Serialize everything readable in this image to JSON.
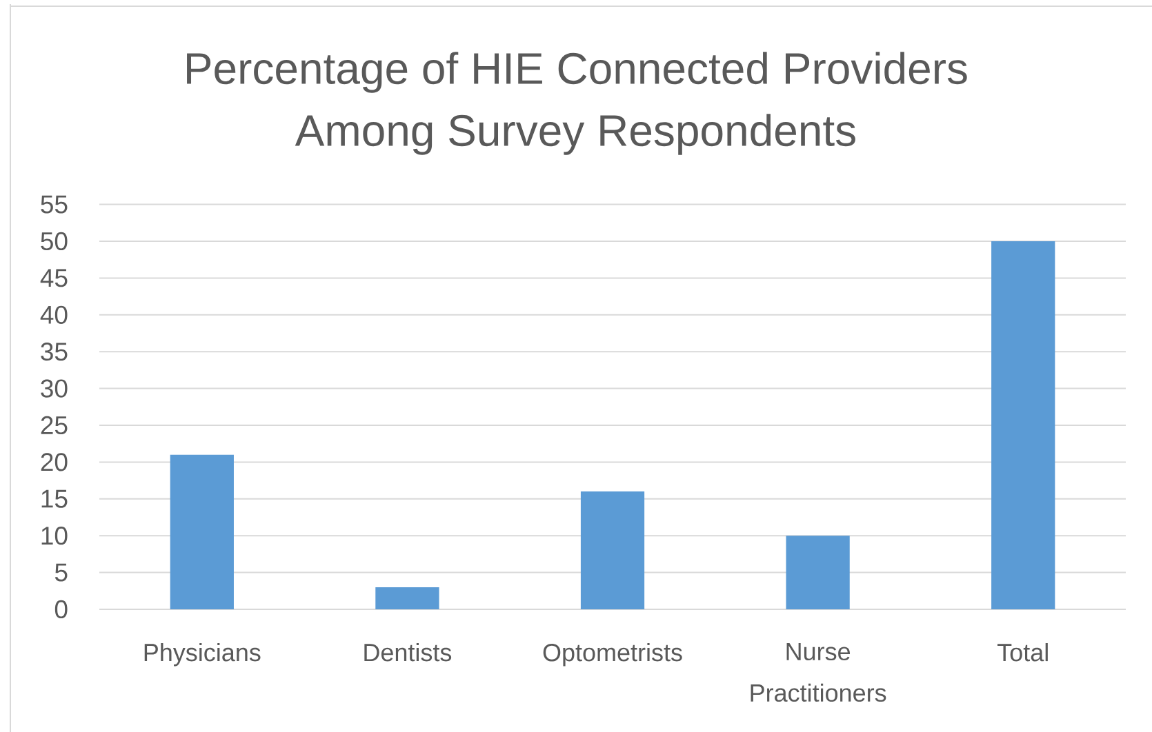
{
  "chart_data": {
    "type": "bar",
    "title": "Percentage of HIE Connected Providers Among Survey Respondents",
    "categories": [
      "Physicians",
      "Dentists",
      "Optometrists",
      "Nurse Practitioners",
      "Total"
    ],
    "values": [
      21,
      3,
      16,
      10,
      50
    ],
    "color": "#5b9bd5",
    "ylim": [
      0,
      55
    ],
    "yticks": [
      0,
      5,
      10,
      15,
      20,
      25,
      30,
      35,
      40,
      45,
      50,
      55
    ],
    "grid": "y"
  }
}
